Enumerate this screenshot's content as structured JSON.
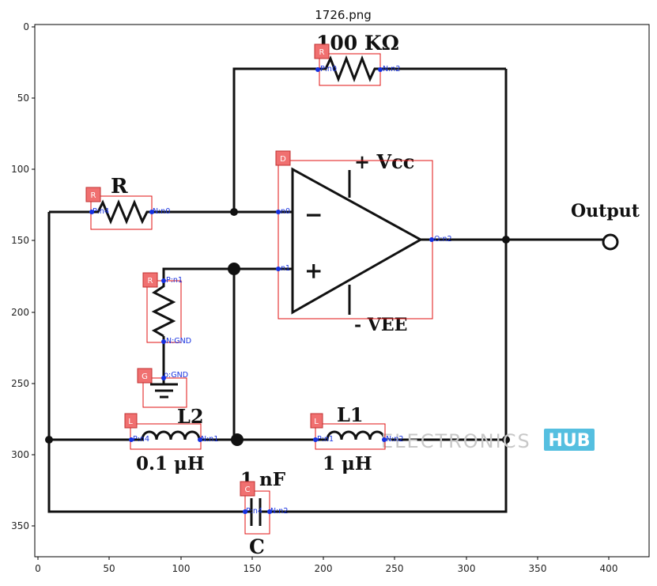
{
  "figure": {
    "title": "1726.png",
    "x_ticks": [
      "0",
      "50",
      "100",
      "150",
      "200",
      "250",
      "300",
      "350",
      "400"
    ],
    "y_ticks": [
      "0",
      "50",
      "100",
      "150",
      "200",
      "250",
      "300",
      "350"
    ]
  },
  "diagram": {
    "labels": {
      "r_feedback": "100 KΩ",
      "r_input": "R",
      "vcc": "+ Vcc",
      "vee": "- VEE",
      "output": "Output",
      "l2": "L2",
      "l2_value": "0.1 μH",
      "l1": "L1",
      "l1_value": "1 μH",
      "c_value": "1 nF",
      "c": "C",
      "minus": "−",
      "plus": "+"
    },
    "watermark": {
      "text": "ELECTRONICS",
      "badge": "HUB"
    },
    "annotations": [
      {
        "tag": "R",
        "pins": [
          "P:n0",
          "N:n2"
        ]
      },
      {
        "tag": "D",
        "pins": [
          "n0",
          "n1",
          "O:n2"
        ]
      },
      {
        "tag": "R",
        "pins": [
          "P:n4",
          "N:n0"
        ]
      },
      {
        "tag": "R",
        "pins": [
          "P:n1",
          "N:GND"
        ]
      },
      {
        "tag": "G",
        "pins": [
          "p:GND"
        ]
      },
      {
        "tag": "L",
        "pins": [
          "P:n4",
          "N:n1"
        ]
      },
      {
        "tag": "L",
        "pins": [
          "P:n1",
          "N:n2"
        ]
      },
      {
        "tag": "C",
        "pins": [
          "P:n4",
          "N:n2"
        ]
      }
    ]
  }
}
